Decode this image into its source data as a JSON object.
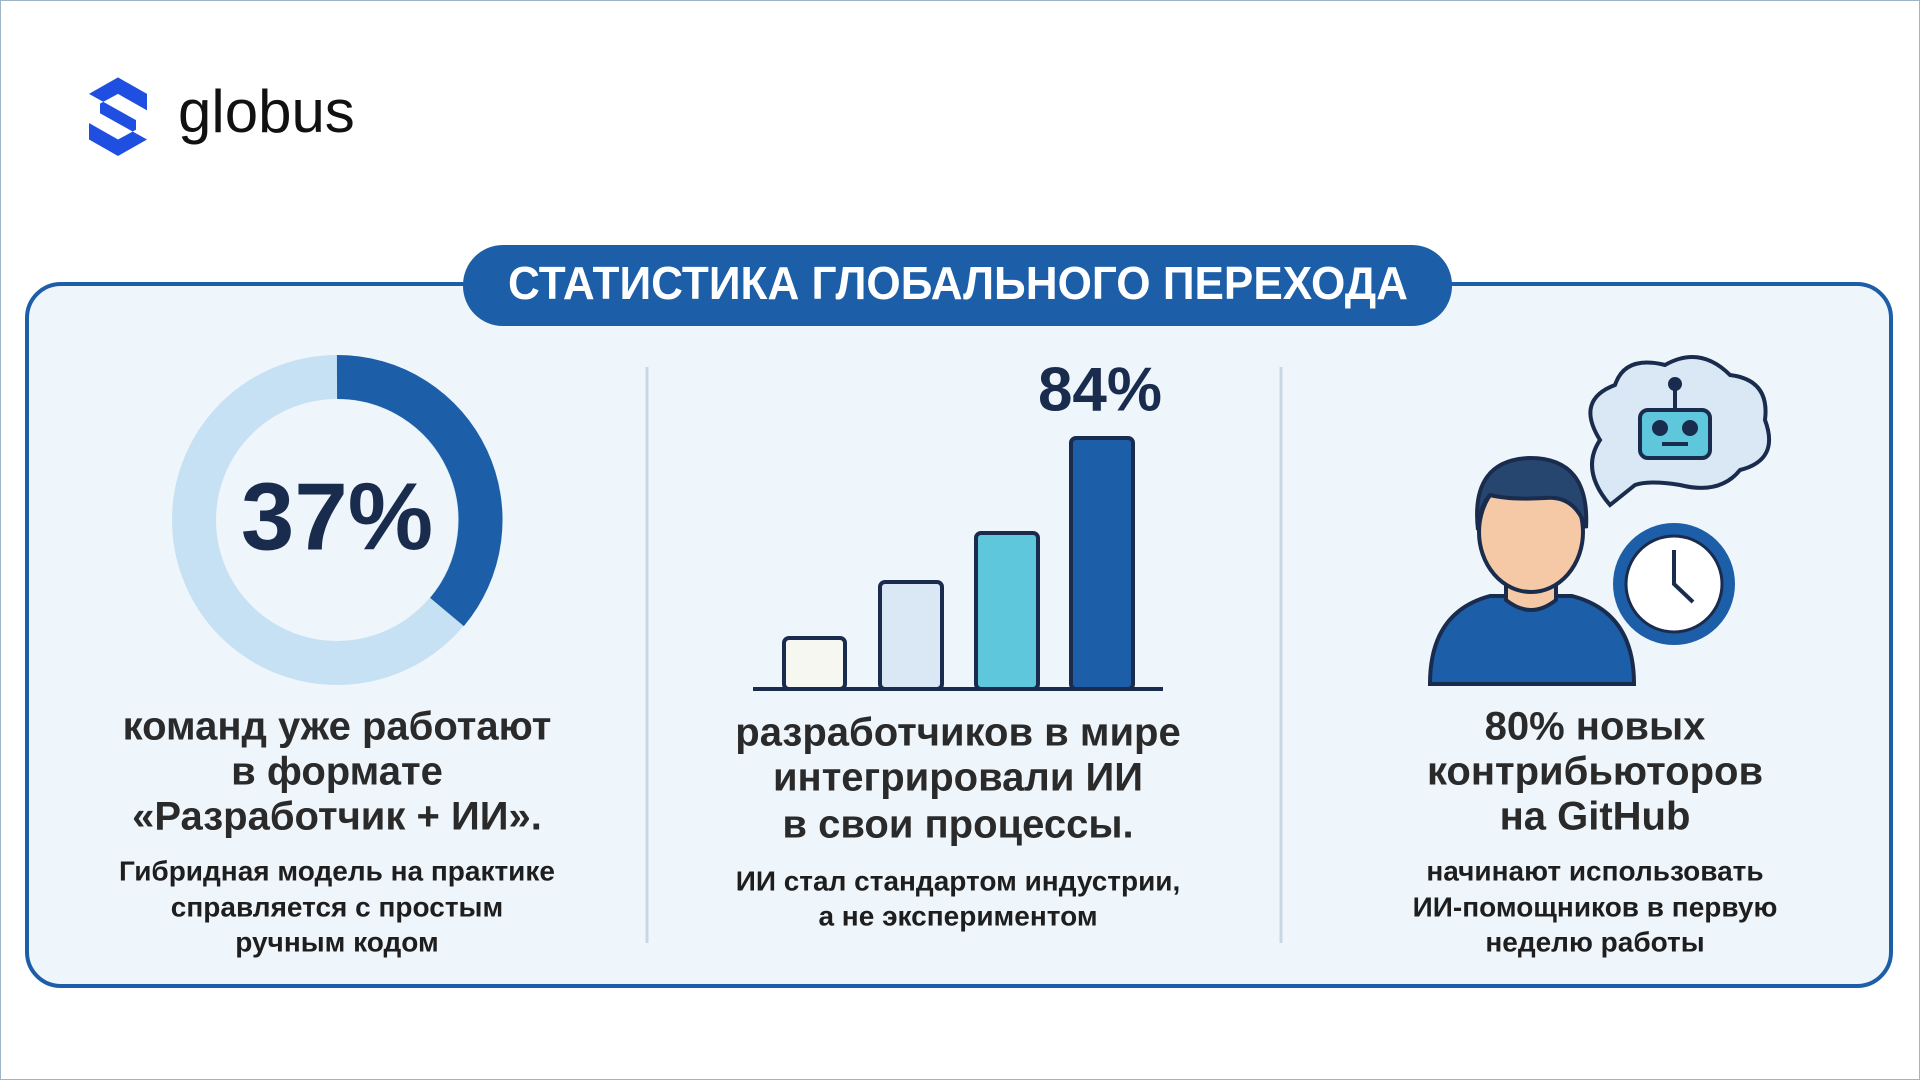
{
  "logo": {
    "text": "globus"
  },
  "title": "СТАТИСТИКА ГЛОБАЛЬНОГО ПЕРЕХОДА",
  "columns": [
    {
      "stat": "37%",
      "headline": [
        "команд уже работают",
        "в формате",
        "«Разработчик + ИИ»."
      ],
      "note": [
        "Гибридная модель на практике",
        "справляется с простым",
        "ручным кодом"
      ]
    },
    {
      "stat": "84%",
      "headline": [
        "разработчиков в мире",
        "интегрировали ИИ",
        "в свои процессы."
      ],
      "note": [
        "ИИ стал стандартом индустрии,",
        "а не экспериментом"
      ]
    },
    {
      "headline": [
        "80% новых",
        "контрибьюторов",
        "на GitHub"
      ],
      "note": [
        "начинают использовать",
        "ИИ-помощников в первую",
        "неделю работы"
      ]
    }
  ]
}
